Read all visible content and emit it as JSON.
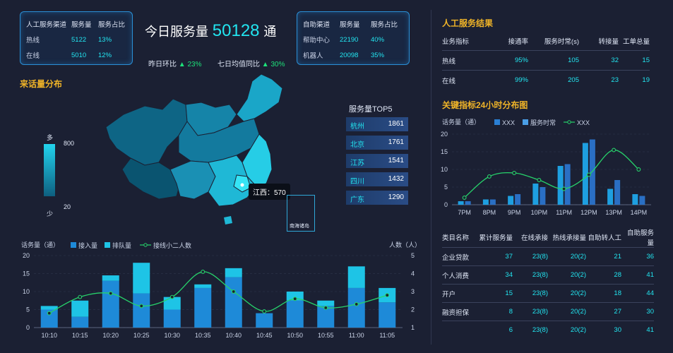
{
  "manual_channels": {
    "headers": [
      "人工服务渠道",
      "服务量",
      "服务占比"
    ],
    "rows": [
      [
        "热线",
        "5122",
        "13%"
      ],
      [
        "在线",
        "5010",
        "12%"
      ]
    ]
  },
  "self_channels": {
    "headers": [
      "自助渠道",
      "服务量",
      "服务占比"
    ],
    "rows": [
      [
        "帮助中心",
        "22190",
        "40%"
      ],
      [
        "机器人",
        "20098",
        "35%"
      ]
    ]
  },
  "today": {
    "prefix": "今日服务量",
    "value": "50128",
    "suffix": "通",
    "day_label": "昨日环比",
    "day_value": "23%",
    "week_label": "七日均值同比",
    "week_value": "30%"
  },
  "map": {
    "title": "来话量分布",
    "legend_high": "多",
    "legend_low": "少",
    "legend_max": "800",
    "legend_min": "20",
    "tooltip": "江西：570",
    "inset_label": "南海诸岛"
  },
  "top5": {
    "title": "服务量TOP5",
    "items": [
      [
        "杭州",
        "1861"
      ],
      [
        "北京",
        "1761"
      ],
      [
        "江苏",
        "1541"
      ],
      [
        "四川",
        "1432"
      ],
      [
        "广东",
        "1290"
      ]
    ]
  },
  "manual_result": {
    "title": "人工服务结果",
    "headers": [
      "业务指标",
      "接通率",
      "服务时常(s)",
      "转接量",
      "工单总量"
    ],
    "rows": [
      [
        "热线",
        "95%",
        "105",
        "32",
        "15"
      ],
      [
        "在线",
        "99%",
        "205",
        "23",
        "19"
      ]
    ]
  },
  "category_table": {
    "headers": [
      "类目名称",
      "累计服务量",
      "在线承接",
      "热线承接量",
      "自助转人工",
      "自助服务量"
    ],
    "rows": [
      [
        "企业贷款",
        "37",
        "23(8)",
        "20(2)",
        "21",
        "36"
      ],
      [
        "个人消费",
        "34",
        "23(8)",
        "20(2)",
        "28",
        "41"
      ],
      [
        "开户",
        "15",
        "23(8)",
        "20(2)",
        "18",
        "44"
      ],
      [
        "融资担保",
        "8",
        "23(8)",
        "20(2)",
        "27",
        "30"
      ],
      [
        "",
        "6",
        "23(8)",
        "20(2)",
        "30",
        "41"
      ]
    ]
  },
  "colors": {
    "bg": "#1b2033",
    "cyan": "#22e5f0",
    "blue": "#2a7fd4",
    "green": "#27d36b",
    "yellow": "#f0b428"
  },
  "chart_data": [
    {
      "type": "bar",
      "title": "关键指标24小时分布图",
      "ylabel": "话务量（通）",
      "categories": [
        "7PM",
        "8PM",
        "9PM",
        "10PM",
        "11PM",
        "12PM",
        "13PM",
        "14PM"
      ],
      "ylim": [
        0,
        20
      ],
      "yticks": [
        0,
        5,
        10,
        15,
        20
      ],
      "legend": [
        "XXX",
        "服务时常",
        "XXX"
      ],
      "series": [
        {
          "name": "XXX",
          "kind": "bar",
          "values": [
            1,
            1.5,
            2.5,
            6,
            11,
            17.5,
            4.5,
            3
          ]
        },
        {
          "name": "服务时常",
          "kind": "bar",
          "values": [
            1,
            1.5,
            3,
            5,
            11.5,
            18.5,
            7,
            2.5
          ]
        },
        {
          "name": "XXX",
          "kind": "line",
          "values": [
            2,
            8,
            9,
            7,
            4.5,
            8.5,
            15.5,
            10
          ]
        }
      ],
      "legend_position": "top-left"
    },
    {
      "type": "bar",
      "ylabel": "话务量（通）",
      "y2label": "人数（人）",
      "categories": [
        "10:10",
        "10:15",
        "10:20",
        "10:25",
        "10:30",
        "10:35",
        "10:40",
        "10:45",
        "10:50",
        "10:55",
        "11:00",
        "11:05"
      ],
      "ylim": [
        0,
        20
      ],
      "yticks": [
        0,
        5,
        10,
        15,
        20
      ],
      "y2lim": [
        1,
        5
      ],
      "y2ticks": [
        1,
        2,
        3,
        4,
        5
      ],
      "legend": [
        "接入量",
        "排队量",
        "接线小二人数"
      ],
      "series": [
        {
          "name": "接入量",
          "kind": "bar-stack",
          "values": [
            5,
            3,
            13,
            9.5,
            5,
            11,
            14,
            4,
            7.5,
            6,
            11,
            7
          ]
        },
        {
          "name": "排队量",
          "kind": "bar-stack",
          "values": [
            1,
            4.5,
            1.5,
            8.5,
            3.5,
            1,
            2.5,
            0,
            2.5,
            1.5,
            6,
            4
          ]
        },
        {
          "name": "接线小二人数",
          "kind": "line",
          "axis": "right",
          "values": [
            1.8,
            2.7,
            2.9,
            2.2,
            2.7,
            4.1,
            3,
            1.9,
            2.6,
            2.1,
            2.3,
            2.8
          ]
        }
      ],
      "legend_position": "top-left"
    }
  ]
}
